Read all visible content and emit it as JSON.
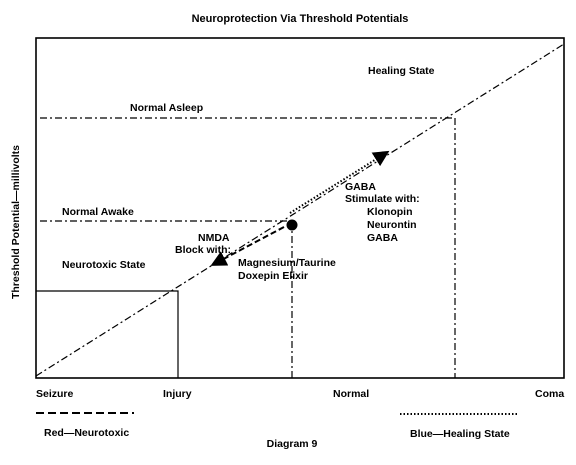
{
  "title": "Neuroprotection Via Threshold Potentials",
  "y_axis_label": "Threshold Potential—millivolts",
  "x_axis_labels": [
    "Seizure",
    "Injury",
    "Normal",
    "Coma"
  ],
  "regions": {
    "healing_state": "Healing State",
    "neurotoxic_state": "Neurotoxic State"
  },
  "levels": {
    "normal_asleep": "Normal Asleep",
    "normal_awake": "Normal Awake"
  },
  "nmda": {
    "line1": "NMDA",
    "line2": "Block with:",
    "drug1": "Magnesium/Taurine",
    "drug2": "Doxepin Elixir"
  },
  "gaba": {
    "line1": "GABA",
    "line2": "Stimulate with:",
    "drug1": "Klonopin",
    "drug2": "Neurontin",
    "drug3": "GABA"
  },
  "legend": {
    "red": "Red—Neurotoxic",
    "blue": "Blue—Healing State"
  },
  "caption": "Diagram 9"
}
